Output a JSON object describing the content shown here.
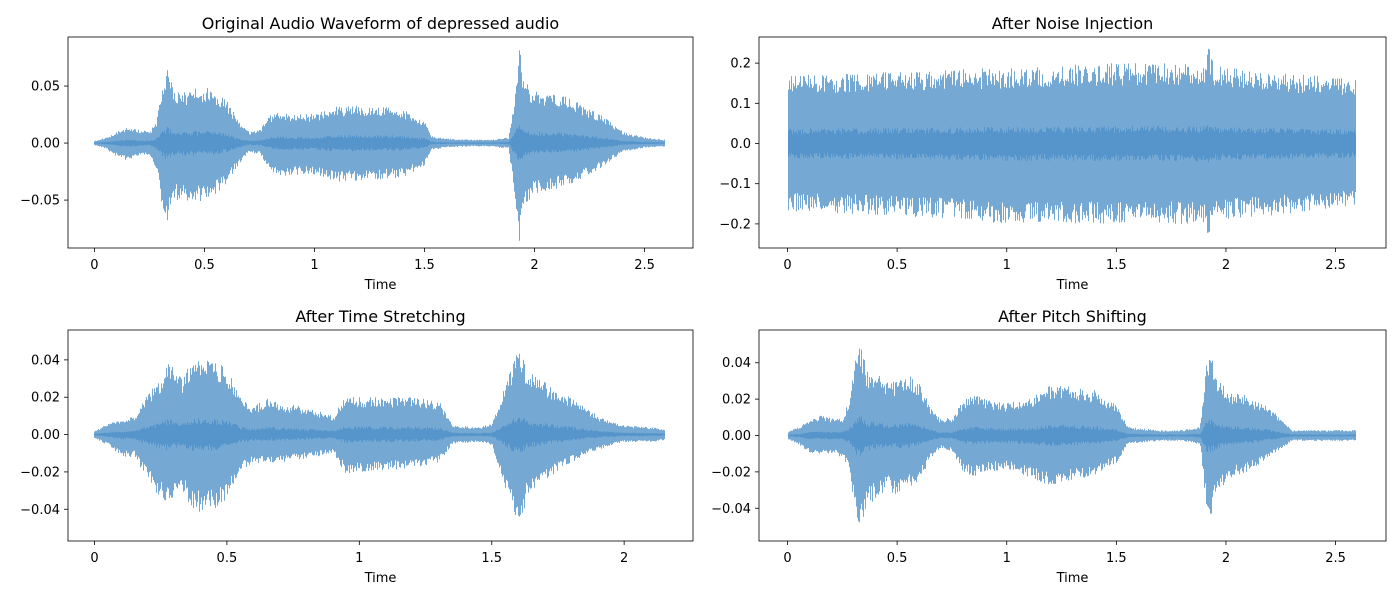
{
  "style": {
    "waveform_color": "#3b85c2",
    "waveform_opacity": 0.7,
    "axis_color": "#000000"
  },
  "chart_data": [
    {
      "type": "waveform",
      "title": "Original Audio Waveform of depressed audio",
      "xlabel": "Time",
      "ylabel": "",
      "xlim": [
        -0.12,
        2.72
      ],
      "ylim": [
        -0.092,
        0.093
      ],
      "xticks": [
        0,
        0.5,
        1,
        1.5,
        2,
        2.5
      ],
      "xtick_labels": [
        "0",
        "0.5",
        "1",
        "1.5",
        "2",
        "2.5"
      ],
      "yticks": [
        -0.05,
        0,
        0.05
      ],
      "ytick_labels": [
        "−0.05",
        "0.00",
        "0.05"
      ],
      "duration": 2.59,
      "envelope": {
        "t": [
          0,
          0.05,
          0.1,
          0.15,
          0.2,
          0.25,
          0.28,
          0.31,
          0.33,
          0.36,
          0.4,
          0.45,
          0.5,
          0.55,
          0.6,
          0.65,
          0.7,
          0.75,
          0.8,
          0.85,
          0.9,
          1.0,
          1.1,
          1.2,
          1.3,
          1.4,
          1.5,
          1.53,
          1.6,
          1.7,
          1.8,
          1.88,
          1.91,
          1.93,
          1.95,
          2.0,
          2.05,
          2.1,
          2.2,
          2.3,
          2.4,
          2.5,
          2.59
        ],
        "upper": [
          0.002,
          0.005,
          0.01,
          0.014,
          0.012,
          0.01,
          0.02,
          0.05,
          0.066,
          0.048,
          0.045,
          0.048,
          0.05,
          0.046,
          0.038,
          0.02,
          0.01,
          0.012,
          0.025,
          0.028,
          0.025,
          0.026,
          0.032,
          0.033,
          0.032,
          0.03,
          0.02,
          0.006,
          0.004,
          0.003,
          0.003,
          0.005,
          0.045,
          0.085,
          0.055,
          0.045,
          0.045,
          0.045,
          0.035,
          0.025,
          0.01,
          0.005,
          0.003
        ],
        "lower": [
          -0.002,
          -0.005,
          -0.012,
          -0.016,
          -0.012,
          -0.01,
          -0.025,
          -0.06,
          -0.068,
          -0.05,
          -0.05,
          -0.052,
          -0.05,
          -0.045,
          -0.035,
          -0.02,
          -0.008,
          -0.01,
          -0.025,
          -0.03,
          -0.028,
          -0.028,
          -0.034,
          -0.033,
          -0.032,
          -0.03,
          -0.02,
          -0.006,
          -0.004,
          -0.003,
          -0.003,
          -0.005,
          -0.05,
          -0.088,
          -0.055,
          -0.045,
          -0.042,
          -0.04,
          -0.033,
          -0.022,
          -0.008,
          -0.004,
          -0.003
        ]
      },
      "seed": 11
    },
    {
      "type": "waveform",
      "title": "After Noise Injection",
      "xlabel": "Time",
      "ylabel": "",
      "xlim": [
        -0.13,
        2.73
      ],
      "ylim": [
        -0.26,
        0.265
      ],
      "xticks": [
        0,
        0.5,
        1,
        1.5,
        2,
        2.5
      ],
      "xtick_labels": [
        "0",
        "0.5",
        "1",
        "1.5",
        "2",
        "2.5"
      ],
      "yticks": [
        -0.2,
        -0.1,
        0,
        0.1,
        0.2
      ],
      "ytick_labels": [
        "−0.2",
        "−0.1",
        "0.0",
        "0.1",
        "0.2"
      ],
      "duration": 2.59,
      "envelope": {
        "t": [
          0,
          0.5,
          1.0,
          1.5,
          1.9,
          1.92,
          1.94,
          2.0,
          2.59
        ],
        "upper": [
          0.17,
          0.18,
          0.19,
          0.2,
          0.2,
          0.24,
          0.2,
          0.19,
          0.16
        ],
        "lower": [
          -0.17,
          -0.18,
          -0.2,
          -0.2,
          -0.2,
          -0.24,
          -0.2,
          -0.19,
          -0.16
        ]
      },
      "seed": 29
    },
    {
      "type": "waveform",
      "title": "After Time Stretching",
      "xlabel": "Time",
      "ylabel": "",
      "xlim": [
        -0.1,
        2.26
      ],
      "ylim": [
        -0.057,
        0.056
      ],
      "xticks": [
        0,
        0.5,
        1,
        1.5,
        2
      ],
      "xtick_labels": [
        "0",
        "0.5",
        "1",
        "1.5",
        "2"
      ],
      "yticks": [
        -0.04,
        -0.02,
        0,
        0.02,
        0.04
      ],
      "ytick_labels": [
        "−0.04",
        "−0.02",
        "0.00",
        "0.02",
        "0.04"
      ],
      "duration": 2.15,
      "envelope": {
        "t": [
          0,
          0.05,
          0.1,
          0.15,
          0.2,
          0.25,
          0.28,
          0.3,
          0.33,
          0.36,
          0.4,
          0.45,
          0.5,
          0.55,
          0.6,
          0.65,
          0.7,
          0.8,
          0.9,
          0.95,
          1.0,
          1.1,
          1.2,
          1.3,
          1.35,
          1.45,
          1.5,
          1.57,
          1.6,
          1.63,
          1.7,
          1.8,
          1.9,
          2.0,
          2.1,
          2.15
        ],
        "upper": [
          0.002,
          0.006,
          0.008,
          0.01,
          0.022,
          0.03,
          0.04,
          0.035,
          0.03,
          0.039,
          0.041,
          0.04,
          0.035,
          0.02,
          0.015,
          0.02,
          0.017,
          0.015,
          0.01,
          0.022,
          0.02,
          0.02,
          0.02,
          0.018,
          0.005,
          0.004,
          0.006,
          0.035,
          0.051,
          0.035,
          0.028,
          0.02,
          0.01,
          0.005,
          0.004,
          0.003
        ],
        "lower": [
          -0.002,
          -0.006,
          -0.012,
          -0.012,
          -0.025,
          -0.035,
          -0.04,
          -0.035,
          -0.03,
          -0.04,
          -0.042,
          -0.04,
          -0.035,
          -0.02,
          -0.015,
          -0.016,
          -0.015,
          -0.013,
          -0.01,
          -0.022,
          -0.02,
          -0.019,
          -0.018,
          -0.015,
          -0.005,
          -0.004,
          -0.006,
          -0.038,
          -0.052,
          -0.035,
          -0.025,
          -0.015,
          -0.008,
          -0.004,
          -0.004,
          -0.003
        ]
      },
      "seed": 47
    },
    {
      "type": "waveform",
      "title": "After Pitch Shifting",
      "xlabel": "Time",
      "ylabel": "",
      "xlim": [
        -0.13,
        2.73
      ],
      "ylim": [
        -0.058,
        0.058
      ],
      "xticks": [
        0,
        0.5,
        1,
        1.5,
        2,
        2.5
      ],
      "xtick_labels": [
        "0",
        "0.5",
        "1",
        "1.5",
        "2",
        "2.5"
      ],
      "yticks": [
        -0.04,
        -0.02,
        0,
        0.02,
        0.04
      ],
      "ytick_labels": [
        "−0.04",
        "−0.02",
        "0.00",
        "0.02",
        "0.04"
      ],
      "duration": 2.59,
      "envelope": {
        "t": [
          0,
          0.05,
          0.1,
          0.15,
          0.2,
          0.25,
          0.28,
          0.31,
          0.33,
          0.36,
          0.4,
          0.45,
          0.5,
          0.55,
          0.6,
          0.65,
          0.7,
          0.75,
          0.8,
          0.85,
          0.9,
          1.0,
          1.1,
          1.2,
          1.3,
          1.4,
          1.5,
          1.55,
          1.6,
          1.7,
          1.8,
          1.88,
          1.91,
          1.93,
          1.95,
          2.0,
          2.05,
          2.1,
          2.2,
          2.3,
          2.4,
          2.5,
          2.59
        ],
        "upper": [
          0.002,
          0.005,
          0.009,
          0.011,
          0.01,
          0.01,
          0.02,
          0.045,
          0.053,
          0.035,
          0.035,
          0.03,
          0.03,
          0.033,
          0.03,
          0.015,
          0.009,
          0.01,
          0.02,
          0.023,
          0.02,
          0.018,
          0.02,
          0.028,
          0.027,
          0.025,
          0.017,
          0.005,
          0.004,
          0.003,
          0.003,
          0.005,
          0.04,
          0.045,
          0.035,
          0.025,
          0.023,
          0.022,
          0.015,
          0.003,
          0.003,
          0.003,
          0.003
        ],
        "lower": [
          -0.002,
          -0.005,
          -0.01,
          -0.01,
          -0.01,
          -0.012,
          -0.02,
          -0.048,
          -0.053,
          -0.04,
          -0.035,
          -0.03,
          -0.033,
          -0.03,
          -0.025,
          -0.013,
          -0.007,
          -0.009,
          -0.02,
          -0.023,
          -0.02,
          -0.019,
          -0.023,
          -0.028,
          -0.025,
          -0.022,
          -0.015,
          -0.005,
          -0.004,
          -0.003,
          -0.003,
          -0.005,
          -0.042,
          -0.045,
          -0.035,
          -0.025,
          -0.022,
          -0.02,
          -0.012,
          -0.003,
          -0.003,
          -0.003,
          -0.003
        ]
      },
      "seed": 83
    }
  ]
}
